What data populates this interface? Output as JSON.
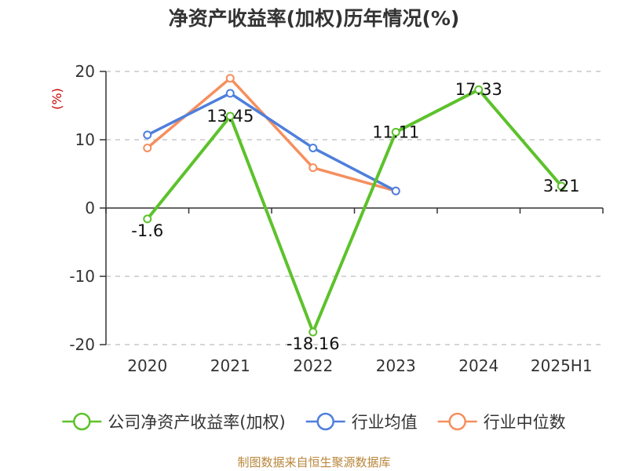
{
  "title": "净资产收益率(加权)历年情况(%)",
  "source": "制图数据来自恒生聚源数据库",
  "chart_data": {
    "type": "line",
    "title": "净资产收益率(加权)历年情况(%)",
    "ylabel": "(%)",
    "xlabel": "",
    "categories": [
      "2020",
      "2021",
      "2022",
      "2023",
      "2024",
      "2025H1"
    ],
    "ylim": [
      -20,
      20
    ],
    "yticks": [
      20,
      10,
      0,
      -10,
      -20
    ],
    "ytick_labels": [
      "20",
      "10",
      "0",
      "-10",
      "-20"
    ],
    "grid": true,
    "legend_position": "bottom",
    "series": [
      {
        "name": "公司净资产收益率(加权)",
        "color": "#5cc22b",
        "values": [
          -1.6,
          13.45,
          -18.16,
          11.11,
          17.33,
          3.21
        ],
        "data_labels": [
          "-1.6",
          "13.45",
          "-18.16",
          "11.11",
          "17.33",
          "3.21"
        ]
      },
      {
        "name": "行业均值",
        "color": "#4e7fdc",
        "values": [
          10.7,
          16.8,
          8.8,
          2.5,
          null,
          null
        ]
      },
      {
        "name": "行业中位数",
        "color": "#f58f5e",
        "values": [
          8.8,
          19.0,
          5.9,
          2.5,
          null,
          null
        ]
      }
    ]
  }
}
